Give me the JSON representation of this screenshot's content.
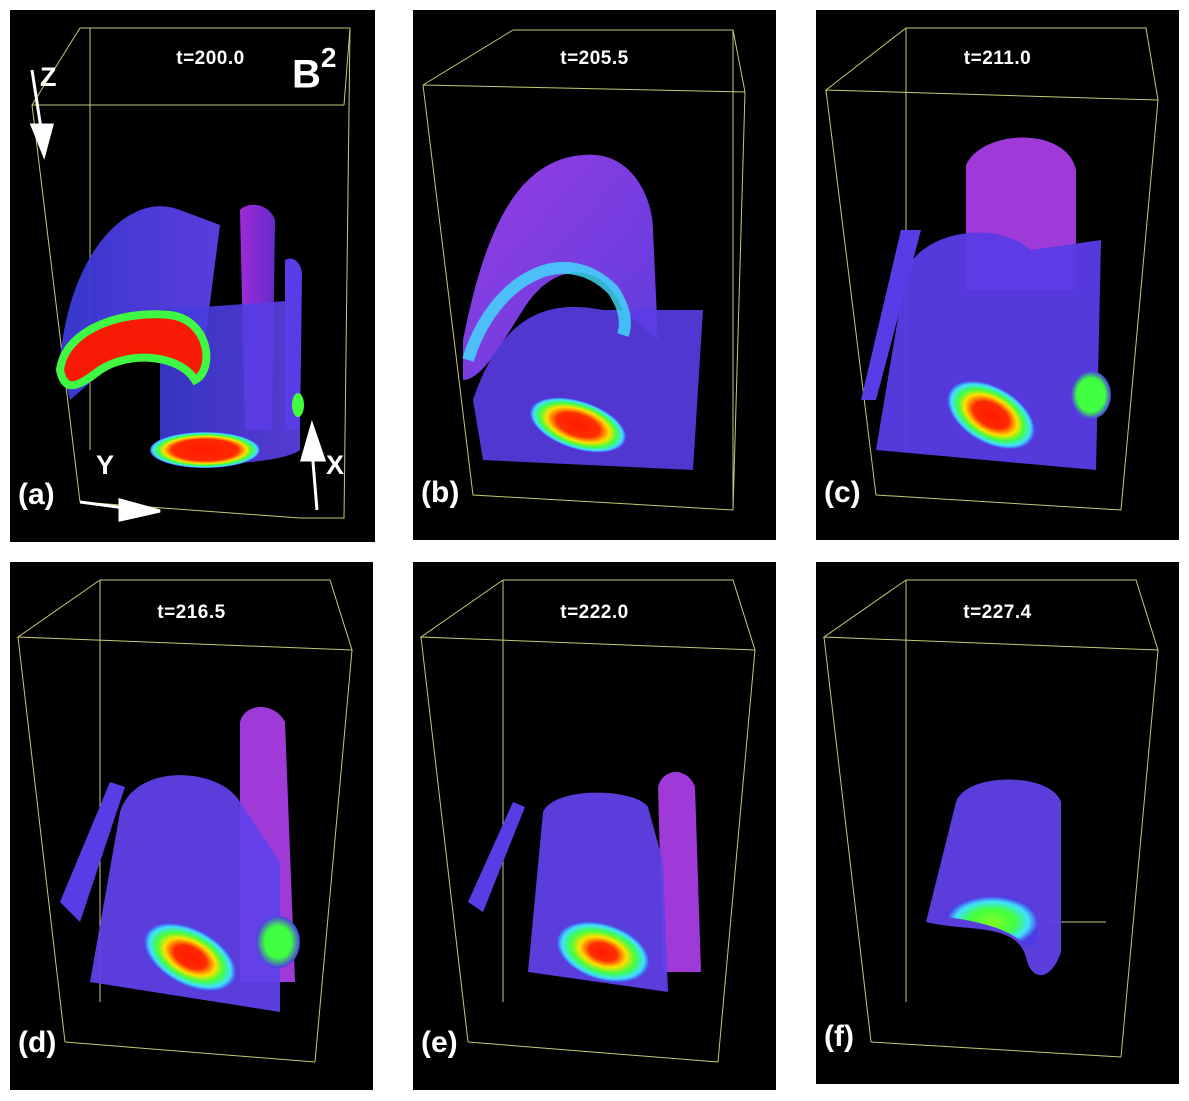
{
  "figure": {
    "quantity": "B",
    "quantity_exponent": "2",
    "axes": {
      "z": "Z",
      "y": "Y",
      "x": "X"
    },
    "panels": [
      {
        "letter": "(a)",
        "time": "t=200.0"
      },
      {
        "letter": "(b)",
        "time": "t=205.5"
      },
      {
        "letter": "(c)",
        "time": "t=211.0"
      },
      {
        "letter": "(d)",
        "time": "t=216.5"
      },
      {
        "letter": "(e)",
        "time": "t=222.0"
      },
      {
        "letter": "(f)",
        "time": "t=227.4"
      }
    ]
  },
  "colors": {
    "background": "#000000",
    "frame": "#c8c878",
    "low": "#4b3ce6",
    "mid": "#a030f0",
    "high": "#ff1a00",
    "green": "#40ff40",
    "cyan": "#40e0ff"
  }
}
